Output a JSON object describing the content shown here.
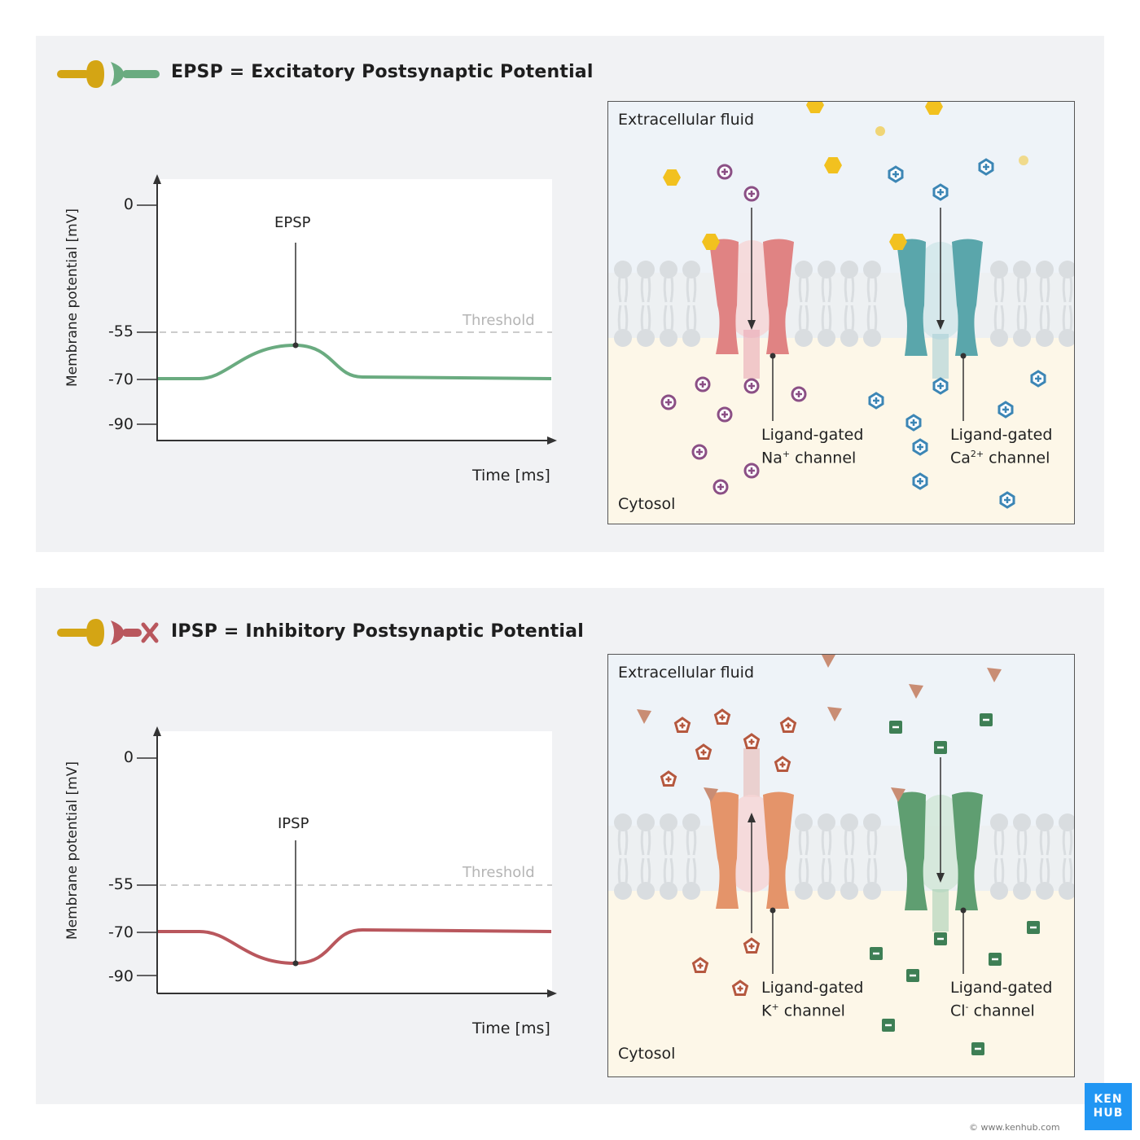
{
  "epsp": {
    "title": "EPSP = Excitatory Postsynaptic Potential",
    "ylabel": "Membrane potential [mV]",
    "xlabel": "Time [ms]",
    "ticks": [
      "0",
      "-55",
      "-70",
      "-90"
    ],
    "threshold": "Threshold",
    "marker": "EPSP",
    "curve_color": "#6aab80",
    "box": {
      "top_label": "Extracellular fluid",
      "bottom_label": "Cytosol",
      "channel1": {
        "line1": "Ligand-gated",
        "line2": "Na",
        "sup": "+",
        "rest": " channel",
        "color": "#e08383"
      },
      "channel2": {
        "line1": "Ligand-gated",
        "line2": "Ca",
        "sup": "2+",
        "rest": " channel",
        "color": "#5aa6ab"
      }
    }
  },
  "ipsp": {
    "title": "IPSP = Inhibitory Postsynaptic Potential",
    "ylabel": "Membrane potential [mV]",
    "xlabel": "Time [ms]",
    "ticks": [
      "0",
      "-55",
      "-70",
      "-90"
    ],
    "threshold": "Threshold",
    "marker": "IPSP",
    "curve_color": "#b9575d",
    "box": {
      "top_label": "Extracellular fluid",
      "bottom_label": "Cytosol",
      "channel1": {
        "line1": "Ligand-gated",
        "line2": "K",
        "sup": "+",
        "rest": " channel",
        "color": "#e4946a"
      },
      "channel2": {
        "line1": "Ligand-gated",
        "line2": "Cl",
        "sup": "-",
        "rest": " channel",
        "color": "#5f9e71"
      }
    }
  },
  "logo": {
    "line1": "KEN",
    "line2": "HUB"
  },
  "copyright": "© www.kenhub.com"
}
